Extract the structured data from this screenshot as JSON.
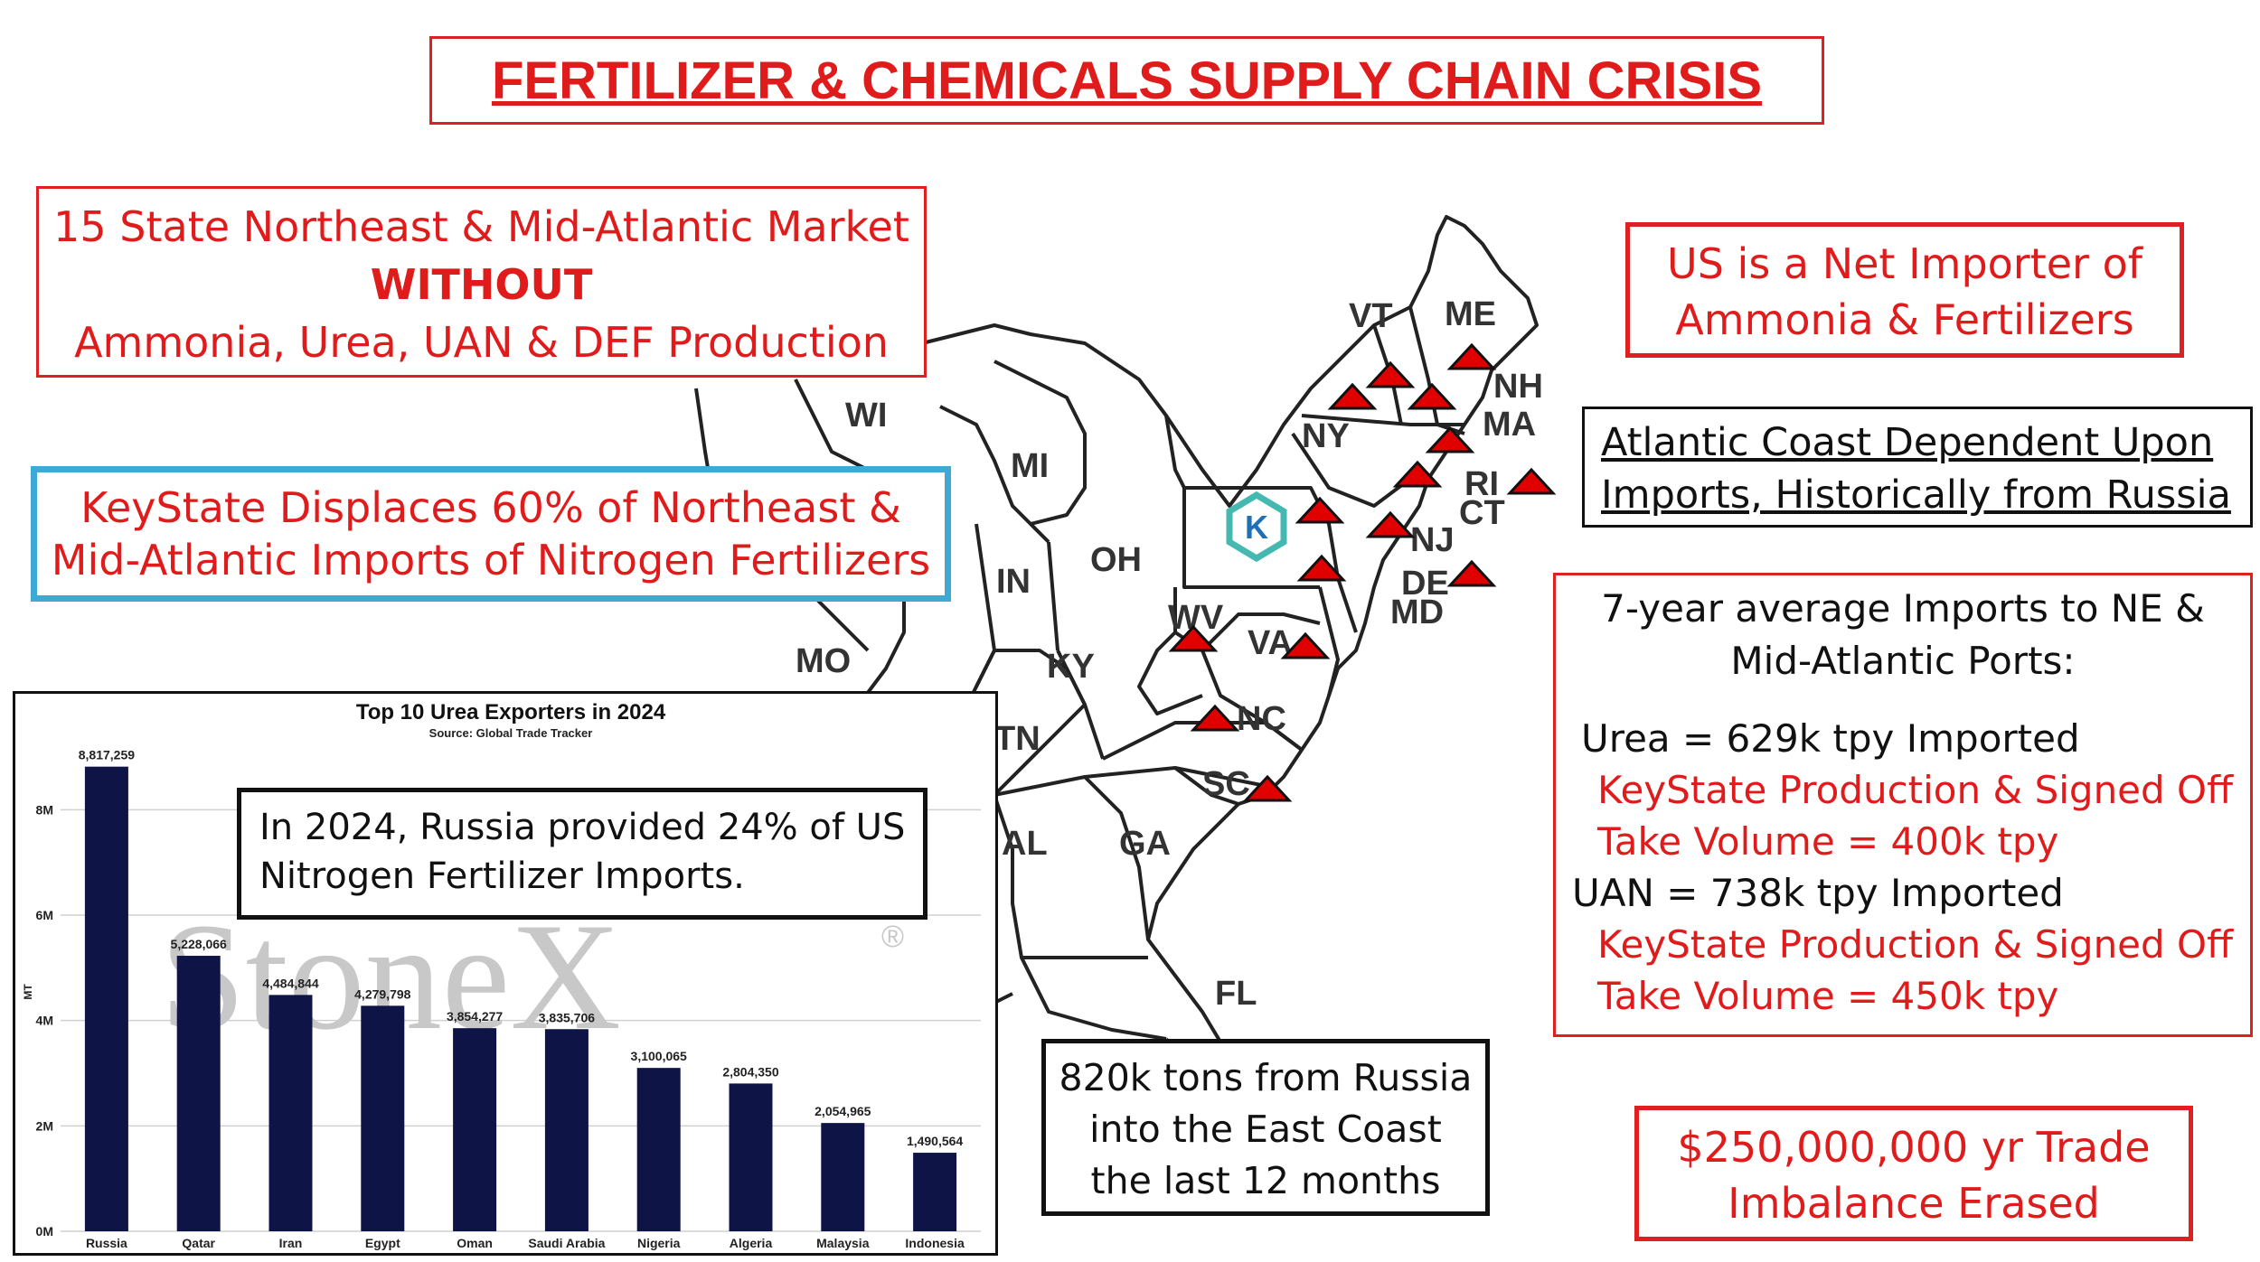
{
  "header": {
    "title": "FERTILIZER & CHEMICALS SUPPLY CHAIN CRISIS"
  },
  "market_box": {
    "line1": "15 State Northeast & Mid-Atlantic Market",
    "line2": "WITHOUT",
    "line3": "Ammonia, Urea, UAN & DEF Production"
  },
  "keystate_box": {
    "line1": "KeyState Displaces 60% of Northeast &",
    "line2": "Mid-Atlantic Imports of Nitrogen Fertilizers"
  },
  "net_importer_box": {
    "line1": "US is a Net Importer of",
    "line2": "Ammonia & Fertilizers"
  },
  "atlantic_box": {
    "line1": "Atlantic Coast Dependent Upon",
    "line2": "Imports, Historically from Russia"
  },
  "imports_box": {
    "heading1": "7-year average Imports to NE &",
    "heading2": "Mid-Atlantic Ports:",
    "urea_line": "Urea  = 629k tpy Imported",
    "urea_ks1": "KeyState Production & Signed Off",
    "urea_ks2": "Take Volume = 400k tpy",
    "uan_line": "UAN =   738k tpy Imported",
    "uan_ks1": "KeyState Production & Signed Off",
    "uan_ks2": "Take Volume = 450k tpy"
  },
  "trade_box": {
    "line1": "$250,000,000 yr Trade",
    "line2": "Imbalance Erased"
  },
  "russia_tons_box": {
    "line1": "820k tons from Russia",
    "line2": "into the East Coast",
    "line3": "the last 12 months"
  },
  "russia_callout": {
    "line1": "In 2024, Russia provided 24% of US",
    "line2": "Nitrogen Fertilizer Imports."
  },
  "map": {
    "state_labels": [
      "VT",
      "ME",
      "NH",
      "MA",
      "NY",
      "RI",
      "CT",
      "NJ",
      "DE",
      "MD",
      "WI",
      "MI",
      "OH",
      "IN",
      "MO",
      "KY",
      "WV",
      "VA",
      "NC",
      "TN",
      "SC",
      "AL",
      "GA",
      "FL"
    ],
    "keystate_logo": "K"
  },
  "colors": {
    "accent_red": "#e01b1b",
    "box_blue": "#3fa9d6",
    "bar_navy": "#0f1447",
    "watermark": "#c8c8c8"
  },
  "chart_data": {
    "type": "bar",
    "title": "Top 10 Urea Exporters in 2024",
    "subtitle": "Source: Global Trade Tracker",
    "ylabel": "MT",
    "watermark": "StoneX",
    "watermark_mark": "®",
    "categories": [
      "Russia",
      "Qatar",
      "Iran",
      "Egypt",
      "Oman",
      "Saudi Arabia",
      "Nigeria",
      "Algeria",
      "Malaysia",
      "Indonesia"
    ],
    "values": [
      8817259,
      5228066,
      4484844,
      4279798,
      3854277,
      3835706,
      3100065,
      2804350,
      2054965,
      1490564
    ],
    "value_labels": [
      "8,817,259",
      "5,228,066",
      "4,484,844",
      "4,279,798",
      "3,854,277",
      "3,835,706",
      "3,100,065",
      "2,804,350",
      "2,054,965",
      "1,490,564"
    ],
    "yticks": [
      0,
      2000000,
      4000000,
      6000000,
      8000000
    ],
    "ytick_labels": [
      "0M",
      "2M",
      "4M",
      "6M",
      "8M"
    ],
    "ylim": [
      0,
      9000000
    ],
    "grid": true,
    "legend": "none"
  }
}
